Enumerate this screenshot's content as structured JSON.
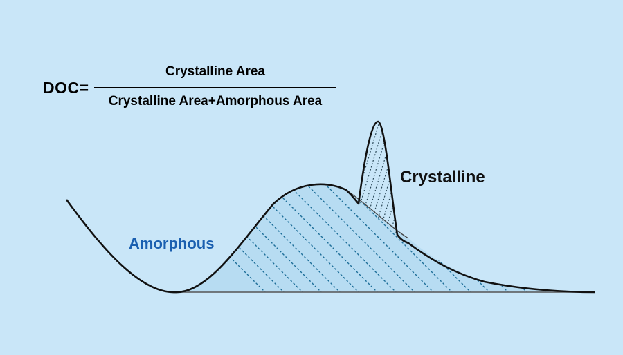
{
  "formula": {
    "lhs": "DOC=",
    "numerator": "Crystalline Area",
    "denominator": "Crystalline Area+Amorphous Area"
  },
  "labels": {
    "amorphous": "Amorphous",
    "crystalline": "Crystalline"
  },
  "colors": {
    "background": "#c9e6f8",
    "amorphous_fill": "#b7dcf2",
    "amorphous_hatch": "#1f6f99",
    "crystalline_hatch": "#2c4a5a",
    "amorphous_label": "#1a5fb0",
    "crystalline_label": "#111111",
    "curve": "#111111"
  }
}
